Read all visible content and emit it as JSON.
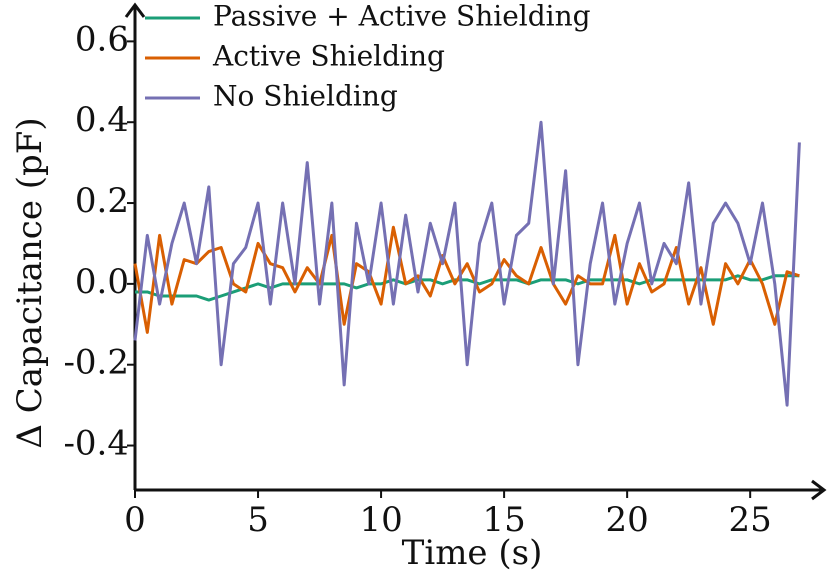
{
  "chart_data": {
    "type": "line",
    "xlabel": "Time (s)",
    "ylabel": "Δ Capacitance (pF)",
    "x": [
      0,
      0.5,
      1,
      1.5,
      2,
      2.5,
      3,
      3.5,
      4,
      4.5,
      5,
      5.5,
      6,
      6.5,
      7,
      7.5,
      8,
      8.5,
      9,
      9.5,
      10,
      10.5,
      11,
      11.5,
      12,
      12.5,
      13,
      13.5,
      14,
      14.5,
      15,
      15.5,
      16,
      16.5,
      17,
      17.5,
      18,
      18.5,
      19,
      19.5,
      20,
      20.5,
      21,
      21.5,
      22,
      22.5,
      23,
      23.5,
      24,
      24.5,
      25,
      25.5,
      26,
      26.5,
      27
    ],
    "series": [
      {
        "name": "Passive + Active Shielding",
        "color": "#1b9e77",
        "values": [
          -0.02,
          -0.02,
          -0.03,
          -0.03,
          -0.03,
          -0.03,
          -0.04,
          -0.03,
          -0.02,
          -0.01,
          0.0,
          -0.01,
          0.0,
          0.0,
          0.0,
          0.0,
          0.0,
          0.0,
          -0.01,
          0.0,
          0.0,
          0.01,
          0.0,
          0.01,
          0.01,
          0.0,
          0.01,
          0.01,
          0.0,
          0.01,
          0.01,
          0.01,
          0.0,
          0.01,
          0.01,
          0.01,
          0.0,
          0.01,
          0.01,
          0.01,
          0.01,
          0.0,
          0.01,
          0.01,
          0.01,
          0.01,
          0.01,
          0.01,
          0.01,
          0.02,
          0.01,
          0.01,
          0.02,
          0.02,
          0.02
        ]
      },
      {
        "name": "Active Shielding",
        "color": "#d95f02",
        "values": [
          0.05,
          -0.12,
          0.12,
          -0.05,
          0.06,
          0.05,
          0.08,
          0.09,
          0.0,
          -0.02,
          0.1,
          0.05,
          0.04,
          -0.02,
          0.04,
          0.0,
          0.12,
          -0.1,
          0.05,
          0.03,
          -0.05,
          0.14,
          0.0,
          0.02,
          -0.03,
          0.07,
          0.0,
          0.05,
          -0.02,
          0.0,
          0.06,
          0.02,
          0.0,
          0.09,
          0.0,
          -0.05,
          0.02,
          0.0,
          0.0,
          0.12,
          -0.05,
          0.05,
          -0.02,
          0.0,
          0.09,
          -0.05,
          0.04,
          -0.1,
          0.05,
          0.0,
          0.06,
          0.0,
          -0.1,
          0.03,
          0.02
        ]
      },
      {
        "name": "No Shielding",
        "color": "#7570b3",
        "values": [
          -0.14,
          0.12,
          -0.05,
          0.1,
          0.2,
          0.05,
          0.24,
          -0.2,
          0.05,
          0.09,
          0.2,
          -0.05,
          0.2,
          0.0,
          0.3,
          -0.05,
          0.2,
          -0.25,
          0.15,
          0.0,
          0.2,
          -0.05,
          0.17,
          -0.02,
          0.15,
          0.05,
          0.2,
          -0.2,
          0.1,
          0.2,
          -0.05,
          0.12,
          0.15,
          0.4,
          0.0,
          0.28,
          -0.2,
          0.05,
          0.2,
          -0.05,
          0.1,
          0.2,
          0.0,
          0.1,
          0.05,
          0.25,
          -0.05,
          0.15,
          0.2,
          0.15,
          0.05,
          0.2,
          0.0,
          -0.3,
          0.35
        ]
      }
    ],
    "xlim": [
      0,
      28
    ],
    "xticks": [
      0,
      5,
      10,
      15,
      20,
      25
    ],
    "ylim": [
      -0.51,
      0.69
    ],
    "yticks": [
      -0.4,
      -0.2,
      {
        "value": 0,
        "label": "0.0"
      },
      0.2,
      0.4,
      0.6
    ],
    "legend": "upper left"
  }
}
